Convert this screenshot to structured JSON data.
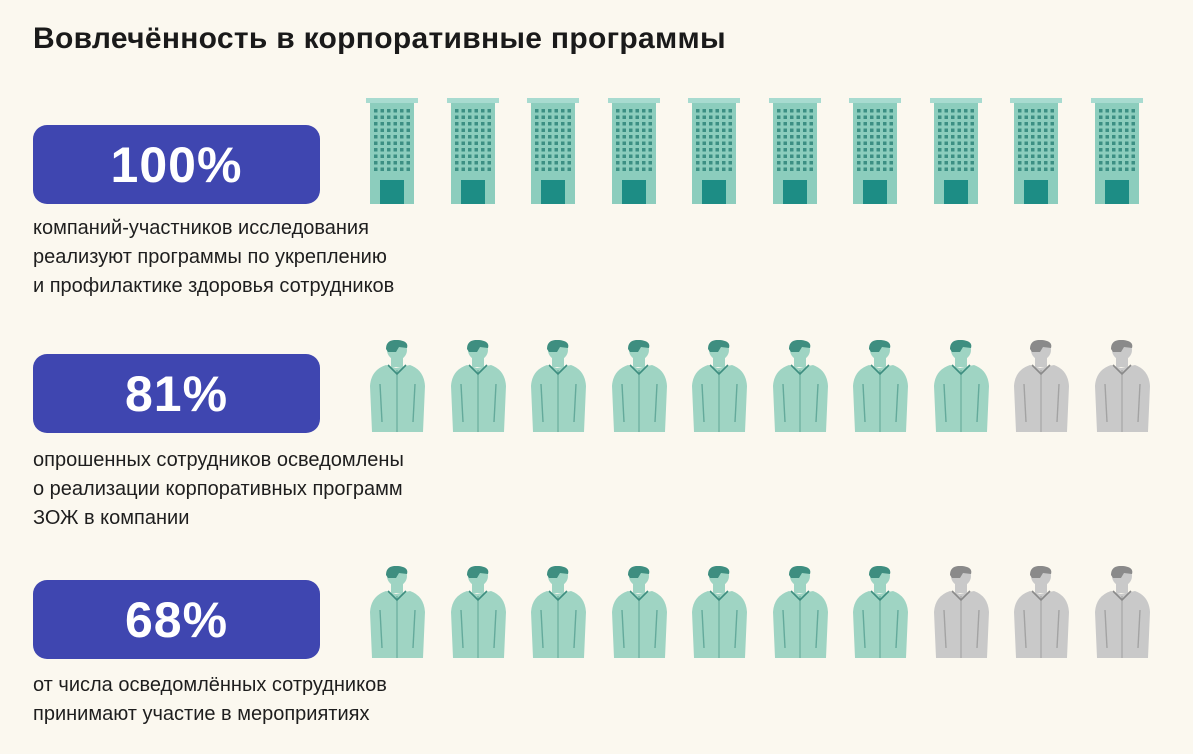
{
  "title": "Вовлечённость в корпоративные программы",
  "colors": {
    "badge": "#3f46b0",
    "active_icon": "#9fd4c3",
    "inactive_icon": "#c9c9c9",
    "building": "#8ccdbd",
    "building_door": "#1d8d85"
  },
  "chart_data": {
    "type": "pictograph",
    "icons_per_row": 10,
    "rows": [
      {
        "value_label": "100%",
        "value": 100,
        "icon": "building-icon",
        "filled": 10,
        "description": "компаний-участников исследования реализуют программы по укреплению и профилактике здоровья сотрудников",
        "lines": [
          "компаний-участников исследования",
          "реализуют программы по укреплению",
          "и профилактике здоровья сотрудников"
        ]
      },
      {
        "value_label": "81%",
        "value": 81,
        "icon": "person-icon",
        "filled": 8,
        "description": "опрошенных сотрудников осведомлены о реализации корпоративных программ ЗОЖ в компании",
        "lines": [
          "опрошенных сотрудников осведомлены",
          "о реализации корпоративных программ",
          "ЗОЖ в компании"
        ]
      },
      {
        "value_label": "68%",
        "value": 68,
        "icon": "person-icon",
        "filled": 7,
        "description": "от числа осведомлённых сотрудников принимают участие в мероприятиях",
        "lines": [
          "от числа осведомлённых сотрудников",
          "принимают участие в мероприятиях"
        ]
      }
    ]
  }
}
